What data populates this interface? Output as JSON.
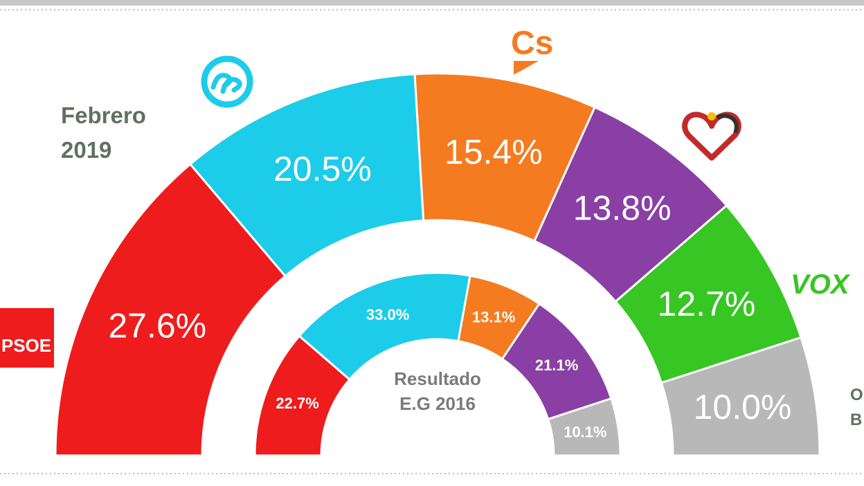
{
  "header_label": "Febrero",
  "header_year": "2019",
  "inner_caption_line1": "Resultado",
  "inner_caption_line2": "E.G 2016",
  "party_logos": {
    "psoe": "PSOE",
    "cs": "Cs",
    "vox": "VOX",
    "others_partial_1": "O",
    "others_partial_2": "B"
  },
  "colors": {
    "PSOE": "#ee1c1c",
    "PP": "#1dcce8",
    "Cs": "#f47b20",
    "Podemos": "#8a3fa5",
    "Vox": "#37c623",
    "Otros": "#b8b8b8"
  },
  "chart_data": [
    {
      "type": "pie",
      "subtype": "semicircle-donut",
      "ring": "outer",
      "title": "Febrero 2019",
      "categories": [
        "PSOE",
        "PP",
        "Cs",
        "Podemos",
        "Vox",
        "Otros"
      ],
      "values": [
        27.6,
        20.5,
        15.4,
        13.8,
        12.7,
        10.0
      ],
      "labels": [
        "27.6%",
        "20.5%",
        "15.4%",
        "13.8%",
        "12.7%",
        "10.0%"
      ]
    },
    {
      "type": "pie",
      "subtype": "semicircle-donut",
      "ring": "inner",
      "title": "Resultado E.G 2016",
      "categories": [
        "PSOE",
        "PP",
        "Cs",
        "Podemos",
        "Otros"
      ],
      "values": [
        22.7,
        33.0,
        13.1,
        21.1,
        10.1
      ],
      "labels": [
        "22.7%",
        "33.0%",
        "13.1%",
        "21.1%",
        "10.1%"
      ]
    }
  ]
}
